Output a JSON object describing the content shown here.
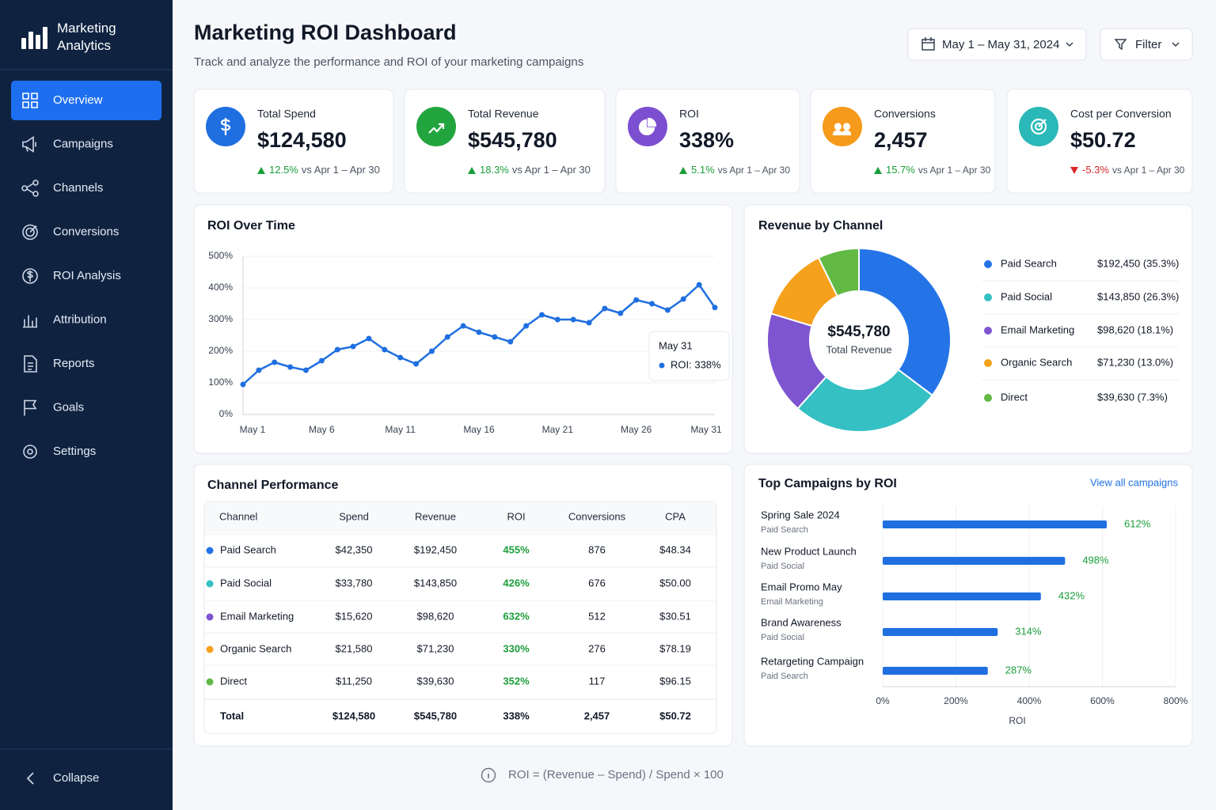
{
  "sidebar": {
    "brand": "Marketing Analytics",
    "nav": [
      "Overview",
      "Campaigns",
      "Channels",
      "Conversions",
      "ROI Analysis",
      "Attribution",
      "Reports",
      "Goals",
      "Settings"
    ],
    "active": 0,
    "collapse": "Collapse"
  },
  "header": {
    "title": "Marketing ROI Dashboard",
    "subtitle": "Track and analyze the performance and ROI of your marketing campaigns",
    "date_range": "May 1 – May 31, 2024",
    "filter": "Filter"
  },
  "kpis": [
    {
      "label": "Total Spend",
      "value": "$124,580",
      "change": "12.5%",
      "trend": "up",
      "comparison": "vs Apr 1 – Apr 30",
      "color": "#1f6fe0"
    },
    {
      "label": "Total Revenue",
      "value": "$545,780",
      "change": "18.3%",
      "trend": "up",
      "comparison": "vs Apr 1 – Apr 30",
      "color": "#22a53e"
    },
    {
      "label": "ROI",
      "value": "338%",
      "change": "5.1%",
      "trend": "up",
      "comparison": "vs Apr 1 – Apr 30",
      "color": "#7c4fd1"
    },
    {
      "label": "Conversions",
      "value": "2,457",
      "change": "15.7%",
      "trend": "up",
      "comparison": "vs Apr 1 – Apr 30",
      "color": "#f59a1b"
    },
    {
      "label": "Cost per Conversion",
      "value": "$50.72",
      "change": "-5.3%",
      "trend": "down",
      "comparison": "vs Apr 1 – Apr 30",
      "color": "#2ab8b8"
    }
  ],
  "roi_over_time": {
    "type": "line",
    "title": "ROI Over Time",
    "categories": [
      "May 1",
      null,
      null,
      null,
      null,
      "May 6",
      null,
      null,
      null,
      null,
      "May 11",
      null,
      null,
      null,
      null,
      "May 16",
      null,
      null,
      null,
      null,
      "May 21",
      null,
      null,
      null,
      null,
      "May 26",
      null,
      null,
      null,
      null,
      "May 31"
    ],
    "values": [
      95,
      140,
      165,
      150,
      140,
      170,
      205,
      215,
      240,
      205,
      180,
      160,
      200,
      245,
      280,
      260,
      245,
      230,
      280,
      315,
      300,
      300,
      290,
      335,
      320,
      362,
      350,
      330,
      365,
      410,
      338
    ],
    "color": "#1f6fe0",
    "ylim": [
      0,
      500
    ],
    "yticks": [
      {
        "value": 0,
        "label": "0%"
      },
      {
        "value": 100,
        "label": "100%"
      },
      {
        "value": 200,
        "label": "200%"
      },
      {
        "value": 300,
        "label": "300%"
      },
      {
        "value": 400,
        "label": "400%"
      },
      {
        "value": 500,
        "label": "500%"
      }
    ],
    "grid": true,
    "tooltip": {
      "title": "May 31",
      "label": "ROI: 338%"
    }
  },
  "revenue_by_channel": {
    "type": "donut",
    "title": "Revenue by Channel",
    "center_value": "$545,780",
    "center_label": "Total Revenue",
    "categories": [
      "Paid Search",
      "Paid Social",
      "Email Marketing",
      "Organic Search",
      "Direct"
    ],
    "values": [
      192450,
      143850,
      98620,
      71230,
      39630
    ],
    "value_labels": [
      "$192,450 (35.3%)",
      "$143,850 (26.3%)",
      "$98,620 (18.1%)",
      "$71,230 (13.0%)",
      "$39,630 (7.3%)"
    ],
    "colors": [
      "#2474e8",
      "#35c0c4",
      "#7d55d0",
      "#f5a11c",
      "#62b944"
    ]
  },
  "channel_performance": {
    "title": "Channel Performance",
    "columns": [
      "Channel",
      "Spend",
      "Revenue",
      "ROI",
      "Conversions",
      "CPA"
    ],
    "rows": [
      [
        "Paid Search",
        "$42,350",
        "$192,450",
        "455%",
        "876",
        "$48.34"
      ],
      [
        "Paid Social",
        "$33,780",
        "$143,850",
        "426%",
        "676",
        "$50.00"
      ],
      [
        "Email Marketing",
        "$15,620",
        "$98,620",
        "632%",
        "512",
        "$30.51"
      ],
      [
        "Organic Search",
        "$21,580",
        "$71,230",
        "330%",
        "276",
        "$78.19"
      ],
      [
        "Direct",
        "$11,250",
        "$39,630",
        "352%",
        "117",
        "$96.15"
      ]
    ],
    "row_colors": [
      "#2474e8",
      "#35c0c4",
      "#7d55d0",
      "#f5a11c",
      "#62b944"
    ],
    "total": [
      "Total",
      "$124,580",
      "$545,780",
      "338%",
      "2,457",
      "$50.72"
    ]
  },
  "top_campaigns": {
    "type": "bar",
    "orientation": "horizontal",
    "title": "Top Campaigns by ROI",
    "link": "View all campaigns",
    "categories": [
      "Spring Sale 2024",
      "New Product Launch",
      "Email Promo May",
      "Brand Awareness",
      "Retargeting Campaign"
    ],
    "subtitles": [
      "Paid Search",
      "Paid Social",
      "Email Marketing",
      "Paid Social",
      "Paid Search"
    ],
    "values": [
      612,
      498,
      432,
      314,
      287
    ],
    "value_labels": [
      "612%",
      "498%",
      "432%",
      "314%",
      "287%"
    ],
    "color": "#1f6fe0",
    "xlim": [
      0,
      800
    ],
    "xticks": [
      {
        "value": 0,
        "label": "0%"
      },
      {
        "value": 200,
        "label": "200%"
      },
      {
        "value": 400,
        "label": "400%"
      },
      {
        "value": 600,
        "label": "600%"
      },
      {
        "value": 800,
        "label": "800%"
      }
    ],
    "xlabel": "ROI",
    "grid": true
  },
  "footer": {
    "note": "ROI = (Revenue – Spend) / Spend × 100"
  }
}
